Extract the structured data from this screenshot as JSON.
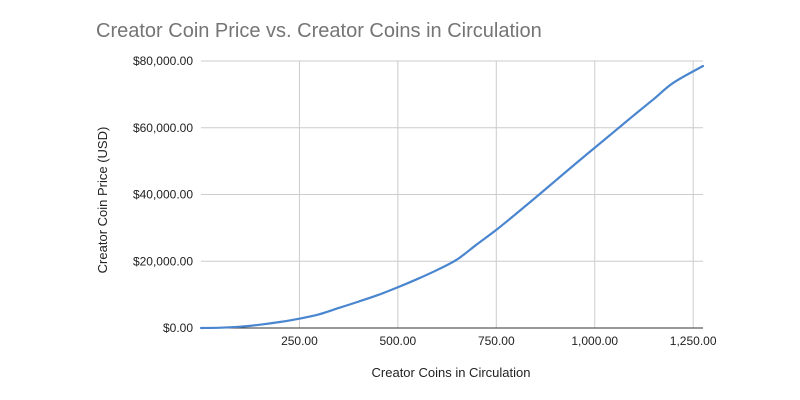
{
  "chart_data": {
    "type": "line",
    "title": "Creator Coin Price vs. Creator Coins in Circulation",
    "xlabel": "Creator Coins in Circulation",
    "ylabel": "Creator Coin Price (USD)",
    "xlim": [
      0,
      1275
    ],
    "ylim": [
      0,
      80000
    ],
    "x_ticks": [
      250,
      500,
      750,
      1000,
      1250
    ],
    "x_tick_labels": [
      "250.00",
      "500.00",
      "750.00",
      "1,000.00",
      "1,250.00"
    ],
    "y_ticks": [
      0,
      20000,
      40000,
      60000,
      80000
    ],
    "y_tick_labels": [
      "$0.00",
      "$20,000.00",
      "$40,000.00",
      "$60,000.00",
      "$80,000.00"
    ],
    "grid": true,
    "line_color": "#4a86cf",
    "series": [
      {
        "points": [
          [
            0,
            0
          ],
          [
            50,
            100
          ],
          [
            100,
            400
          ],
          [
            150,
            1000
          ],
          [
            200,
            1800
          ],
          [
            250,
            2800
          ],
          [
            300,
            4100
          ],
          [
            350,
            6000
          ],
          [
            400,
            7900
          ],
          [
            450,
            9900
          ],
          [
            500,
            12200
          ],
          [
            550,
            14700
          ],
          [
            600,
            17400
          ],
          [
            650,
            20500
          ],
          [
            700,
            25000
          ],
          [
            750,
            29400
          ],
          [
            800,
            34200
          ],
          [
            850,
            39100
          ],
          [
            900,
            44100
          ],
          [
            950,
            49100
          ],
          [
            1000,
            54000
          ],
          [
            1050,
            58900
          ],
          [
            1100,
            63800
          ],
          [
            1150,
            68600
          ],
          [
            1200,
            73500
          ],
          [
            1275,
            78500
          ]
        ]
      }
    ]
  }
}
